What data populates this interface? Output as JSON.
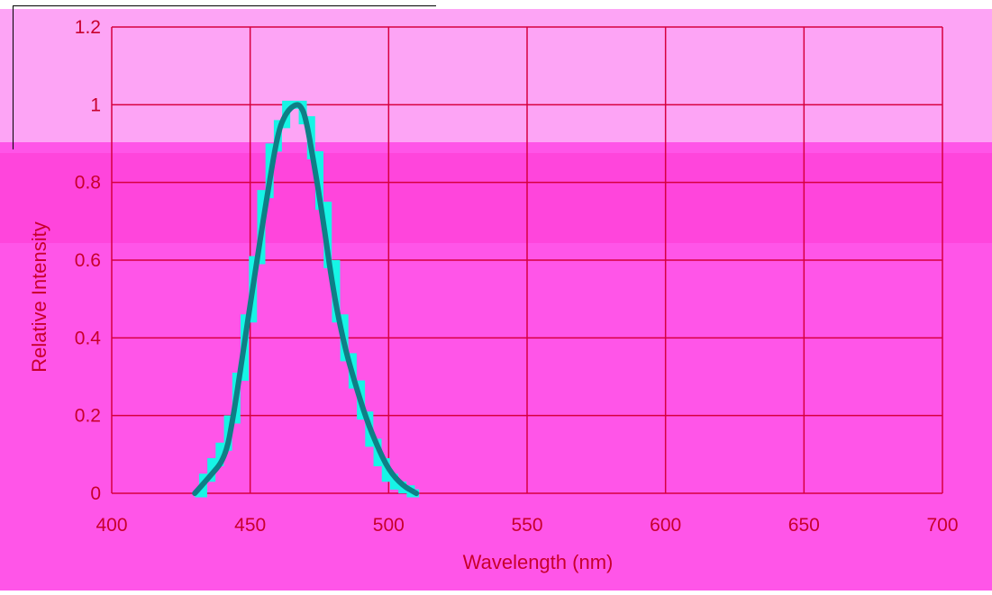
{
  "colors": {
    "background_top": "#fda4f5",
    "background_main": "#ff55e8",
    "band": "#ff45dc",
    "grid": "#d7003f",
    "text": "#c8002c",
    "step_series": "#17f5e6",
    "smooth_series": "#0d7f86"
  },
  "chart_data": {
    "type": "line",
    "title": "",
    "xlabel": "Wavelength (nm)",
    "ylabel": "Relative Intensity",
    "xlim": [
      400,
      700
    ],
    "ylim": [
      0,
      1.2
    ],
    "x_ticks": [
      "400",
      "450",
      "500",
      "550",
      "600",
      "650",
      "700"
    ],
    "y_ticks": [
      "0",
      "0.2",
      "0.4",
      "0.6",
      "0.8",
      "1",
      "1.2"
    ],
    "grid": true,
    "legend": "none",
    "series": [
      {
        "style": "step",
        "x": [
          430,
          433,
          436,
          439,
          442,
          445,
          448,
          451,
          454,
          457,
          460,
          463,
          466,
          469,
          472,
          475,
          478,
          481,
          484,
          487,
          490,
          493,
          496,
          499,
          502,
          505,
          508,
          511
        ],
        "y": [
          0.0,
          0.04,
          0.08,
          0.12,
          0.19,
          0.3,
          0.45,
          0.6,
          0.77,
          0.89,
          0.95,
          1.0,
          1.0,
          0.96,
          0.87,
          0.74,
          0.59,
          0.45,
          0.35,
          0.28,
          0.2,
          0.13,
          0.08,
          0.04,
          0.02,
          0.01,
          0.0,
          0.0
        ]
      },
      {
        "style": "smooth",
        "x": [
          430,
          435,
          441,
          444,
          448,
          452,
          456,
          460,
          463,
          466,
          468,
          470,
          473,
          476,
          480,
          484,
          488,
          492,
          496,
          500,
          505,
          510
        ],
        "y": [
          0.0,
          0.04,
          0.09,
          0.2,
          0.39,
          0.58,
          0.76,
          0.93,
          0.98,
          1.0,
          1.0,
          0.97,
          0.85,
          0.72,
          0.52,
          0.38,
          0.28,
          0.19,
          0.12,
          0.06,
          0.02,
          0.0
        ]
      }
    ]
  }
}
